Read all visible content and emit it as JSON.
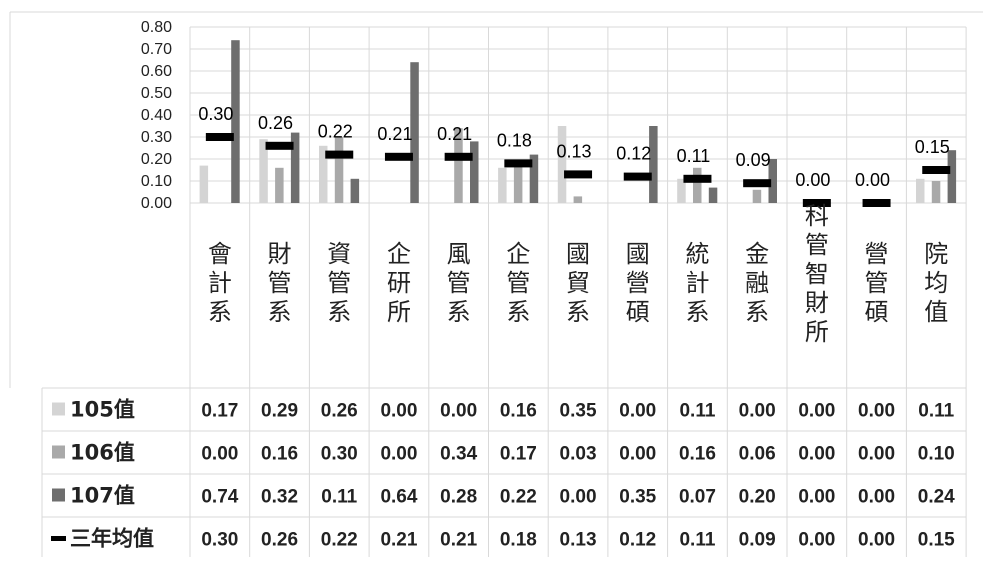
{
  "chart_data": {
    "type": "bar",
    "categories": [
      "會計系",
      "財管系",
      "資管系",
      "企研所",
      "風管系",
      "企管系",
      "國貿系",
      "國營碩",
      "統計系",
      "金融系",
      "科管智財所",
      "營管碩",
      "院均值"
    ],
    "ylim": [
      0,
      0.8
    ],
    "yticks": [
      "0.00",
      "0.10",
      "0.20",
      "0.30",
      "0.40",
      "0.50",
      "0.60",
      "0.70",
      "0.80"
    ],
    "grid": true,
    "legend": "table-rows",
    "series": [
      {
        "name": "105值",
        "color": "#d4d4d4",
        "values": [
          0.17,
          0.29,
          0.26,
          0.0,
          0.0,
          0.16,
          0.35,
          0.0,
          0.11,
          0.0,
          0.0,
          0.0,
          0.11
        ],
        "labels": [
          "0.17",
          "0.29",
          "0.26",
          "0.00",
          "0.00",
          "0.16",
          "0.35",
          "0.00",
          "0.11",
          "0.00",
          "0.00",
          "0.00",
          "0.11"
        ]
      },
      {
        "name": "106值",
        "color": "#a9a9a9",
        "values": [
          0.0,
          0.16,
          0.3,
          0.0,
          0.34,
          0.17,
          0.03,
          0.0,
          0.16,
          0.06,
          0.0,
          0.0,
          0.1
        ],
        "labels": [
          "0.00",
          "0.16",
          "0.30",
          "0.00",
          "0.34",
          "0.17",
          "0.03",
          "0.00",
          "0.16",
          "0.06",
          "0.00",
          "0.00",
          "0.10"
        ]
      },
      {
        "name": "107值",
        "color": "#6e6e6e",
        "values": [
          0.74,
          0.32,
          0.11,
          0.64,
          0.28,
          0.22,
          0.0,
          0.35,
          0.07,
          0.2,
          0.0,
          0.0,
          0.24
        ],
        "labels": [
          "0.74",
          "0.32",
          "0.11",
          "0.64",
          "0.28",
          "0.22",
          "0.00",
          "0.35",
          "0.07",
          "0.20",
          "0.00",
          "0.00",
          "0.24"
        ]
      },
      {
        "name": "三年均值",
        "color": "#000000",
        "marker": "dash",
        "values": [
          0.3,
          0.26,
          0.22,
          0.21,
          0.21,
          0.18,
          0.13,
          0.12,
          0.11,
          0.09,
          0.0,
          0.0,
          0.15
        ],
        "labels": [
          "0.30",
          "0.26",
          "0.22",
          "0.21",
          "0.21",
          "0.18",
          "0.13",
          "0.12",
          "0.11",
          "0.09",
          "0.00",
          "0.00",
          "0.15"
        ]
      }
    ]
  }
}
